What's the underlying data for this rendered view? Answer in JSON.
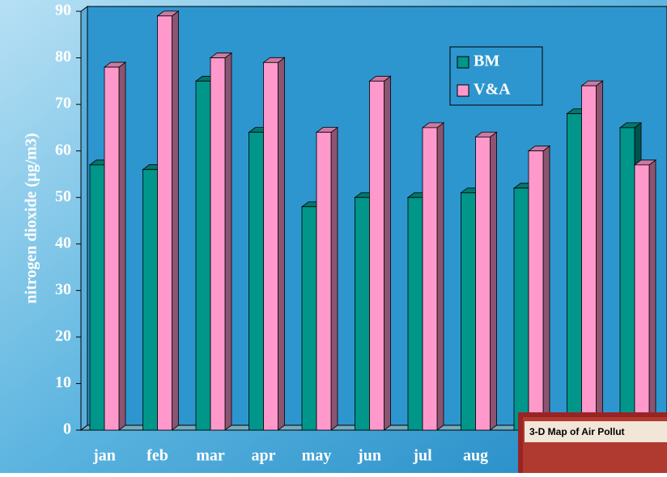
{
  "chart_data": {
    "type": "bar3d",
    "y_label": "nitrogen dioxide (µg/m3)",
    "categories": [
      "jan",
      "feb",
      "mar",
      "apr",
      "may",
      "jun",
      "jul",
      "aug",
      null,
      null,
      null
    ],
    "series": [
      {
        "name": "BM",
        "color": "#00968a",
        "values": [
          57,
          56,
          75,
          64,
          48,
          50,
          50,
          51,
          52,
          68,
          65
        ]
      },
      {
        "name": "V&A",
        "color": "#ff99cc",
        "values": [
          78,
          89,
          80,
          79,
          64,
          75,
          65,
          63,
          60,
          74,
          57
        ]
      }
    ],
    "ylim": [
      0,
      90
    ],
    "yticks": [
      0,
      10,
      20,
      30,
      40,
      50,
      60,
      70,
      80,
      90
    ],
    "grid": false,
    "legend": "top-right",
    "inset_title": "3-D Map of Air Pollut"
  }
}
